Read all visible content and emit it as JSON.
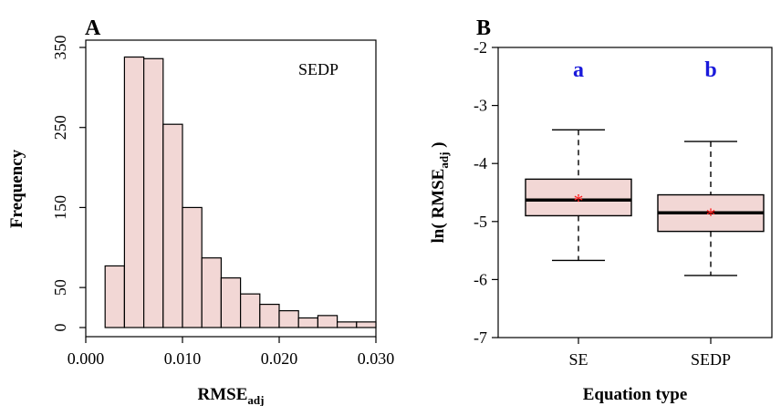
{
  "colors": {
    "fill": "#f2d7d5",
    "stroke": "#000000",
    "significance": "#1a1adb",
    "mean_marker": "#ff2020"
  },
  "chart_data": [
    {
      "type": "bar",
      "panel": "A",
      "annotation": "SEDP",
      "xlabel_main": "RMSE",
      "xlabel_sub": "adj",
      "ylabel": "Frequency",
      "xlim": [
        0.0,
        0.03
      ],
      "ylim": [
        0,
        350
      ],
      "x_ticks": [
        "0.000",
        "0.010",
        "0.020",
        "0.030"
      ],
      "x_tick_values": [
        0.0,
        0.01,
        0.02,
        0.03
      ],
      "y_ticks": [
        "0",
        "50",
        "150",
        "250",
        "350"
      ],
      "y_tick_values": [
        0,
        50,
        150,
        250,
        350
      ],
      "bin_edges": [
        0.002,
        0.004,
        0.006,
        0.008,
        0.01,
        0.012,
        0.014,
        0.016,
        0.018,
        0.02,
        0.022,
        0.024,
        0.026,
        0.028,
        0.03
      ],
      "values": [
        77,
        338,
        336,
        254,
        150,
        87,
        62,
        42,
        29,
        21,
        12,
        15,
        7,
        7
      ]
    },
    {
      "type": "box",
      "panel": "B",
      "xlabel": "Equation type",
      "ylabel_main": "ln( RMSE",
      "ylabel_sub": "adj",
      "ylabel_end": " )",
      "ylim": [
        -7,
        -2
      ],
      "y_ticks": [
        "-2",
        "-3",
        "-4",
        "-5",
        "-6",
        "-7"
      ],
      "y_tick_values": [
        -2,
        -3,
        -4,
        -5,
        -6,
        -7
      ],
      "categories": [
        "SE",
        "SEDP"
      ],
      "significance": [
        "a",
        "b"
      ],
      "mean_marker": "*",
      "boxes": [
        {
          "whisker_low": -5.67,
          "q1": -4.9,
          "median": -4.63,
          "q3": -4.27,
          "whisker_high": -3.42,
          "mean": -4.59
        },
        {
          "whisker_low": -5.93,
          "q1": -5.17,
          "median": -4.85,
          "q3": -4.54,
          "whisker_high": -3.62,
          "mean": -4.83
        }
      ]
    }
  ]
}
